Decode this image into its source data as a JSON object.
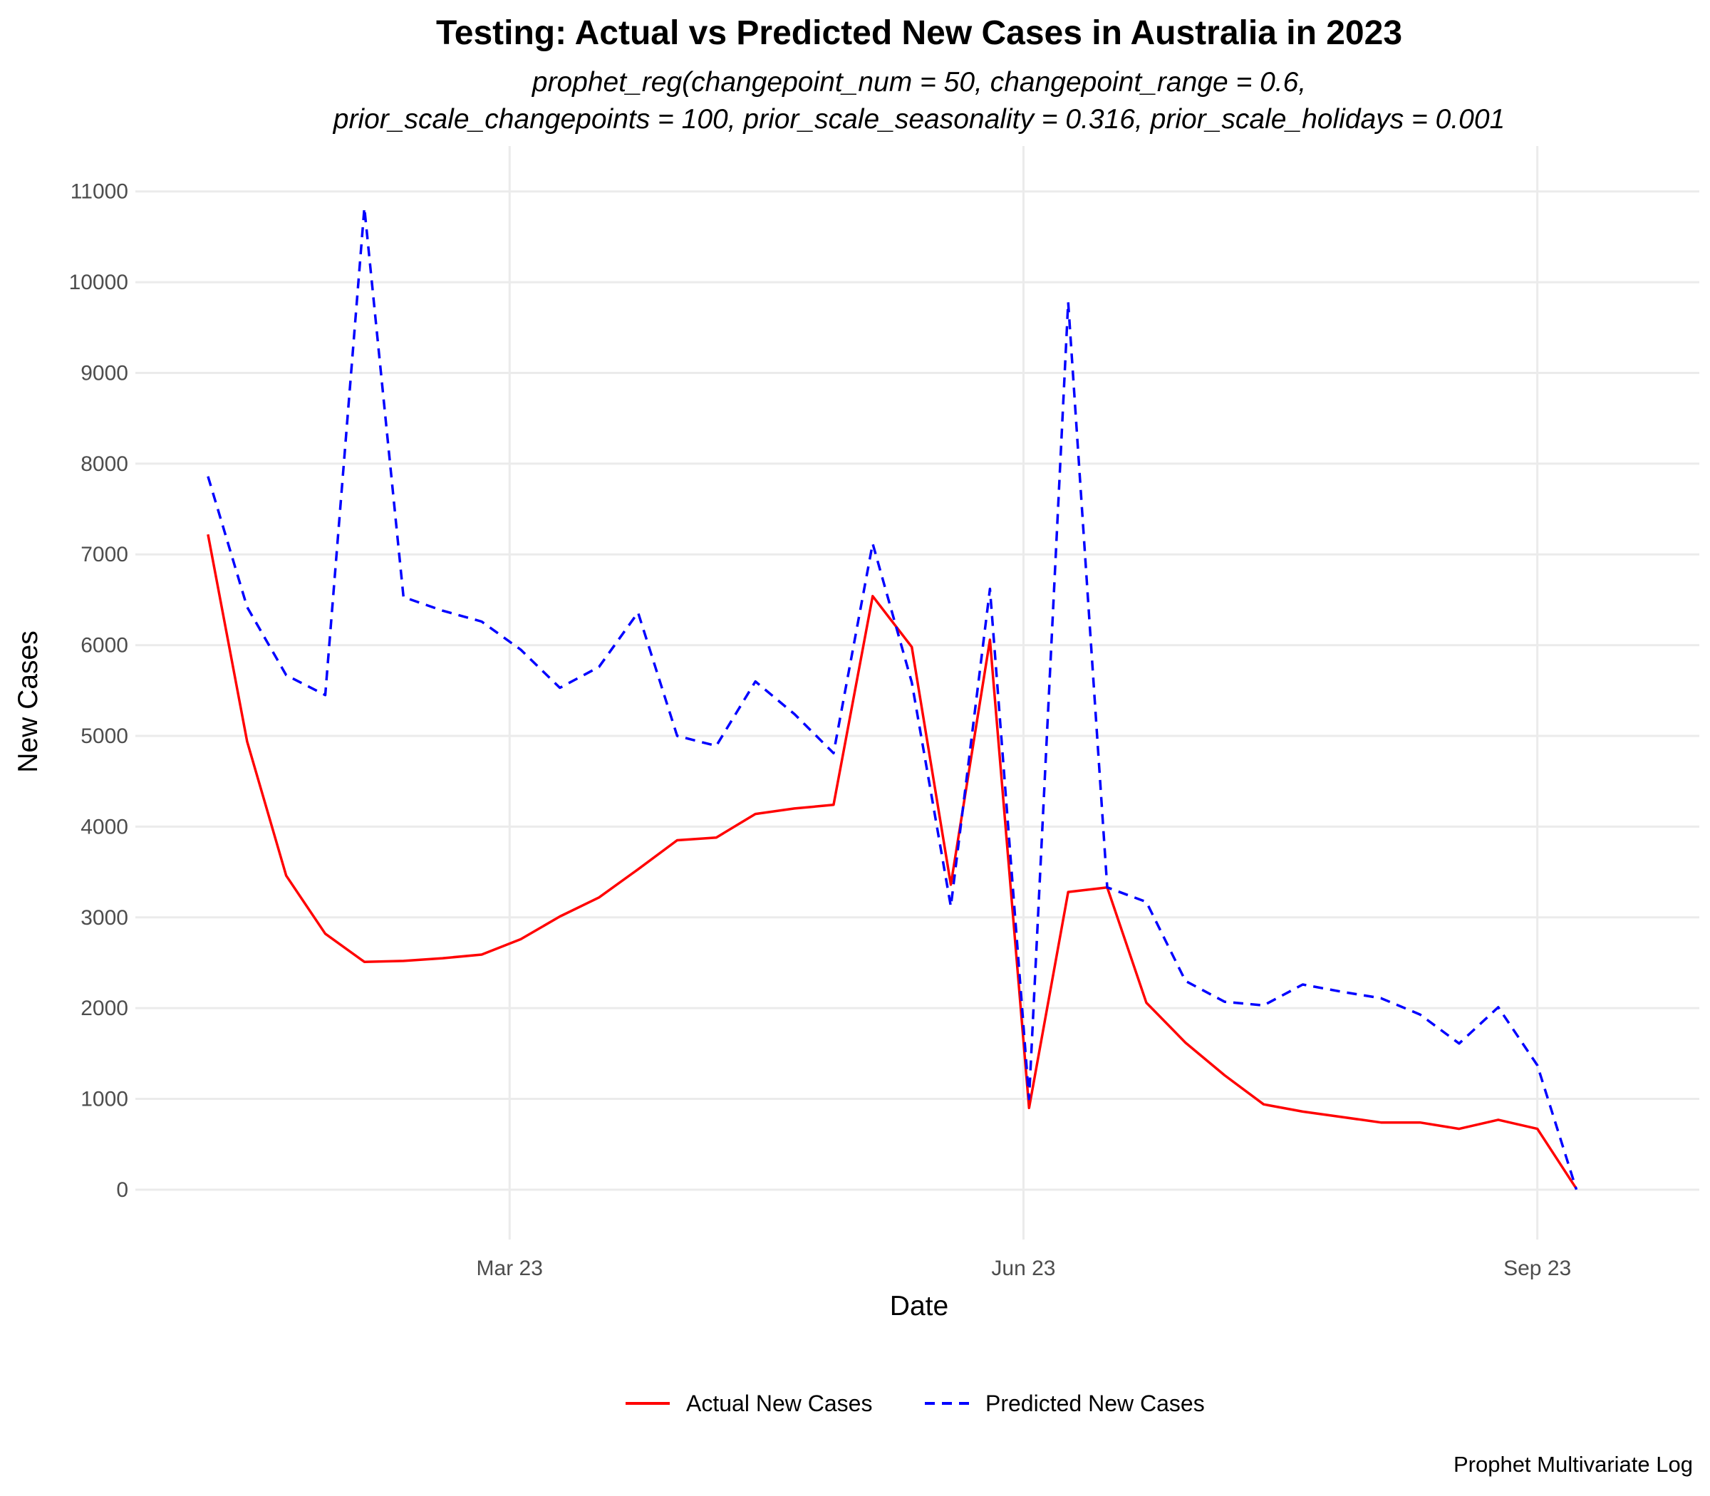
{
  "chart_data": {
    "type": "line",
    "title": "Testing: Actual vs Predicted New Cases in Australia in 2023",
    "subtitle_lines": [
      "prophet_reg(changepoint_num = 50, changepoint_range = 0.6,",
      "prior_scale_changepoints = 100, prior_scale_seasonality = 0.316, prior_scale_holidays = 0.001"
    ],
    "xlabel": "Date",
    "ylabel": "New Cases",
    "caption": "Prophet Multivariate Log",
    "xlim": [
      "2022-12-24",
      "2023-09-30"
    ],
    "ylim": [
      -550,
      11500
    ],
    "x_ticks": [
      {
        "date": "2023-03-01",
        "label": "Mar 23"
      },
      {
        "date": "2023-06-01",
        "label": "Jun 23"
      },
      {
        "date": "2023-09-01",
        "label": "Sep 23"
      }
    ],
    "y_ticks": [
      0,
      1000,
      2000,
      3000,
      4000,
      5000,
      6000,
      7000,
      8000,
      9000,
      10000,
      11000
    ],
    "grid": true,
    "legend_position": "bottom",
    "x": [
      "2023-01-06",
      "2023-01-13",
      "2023-01-20",
      "2023-01-27",
      "2023-02-03",
      "2023-02-10",
      "2023-02-17",
      "2023-02-24",
      "2023-03-03",
      "2023-03-10",
      "2023-03-17",
      "2023-03-24",
      "2023-03-31",
      "2023-04-07",
      "2023-04-14",
      "2023-04-21",
      "2023-04-28",
      "2023-05-05",
      "2023-05-12",
      "2023-05-19",
      "2023-05-26",
      "2023-06-02",
      "2023-06-09",
      "2023-06-16",
      "2023-06-23",
      "2023-06-30",
      "2023-07-07",
      "2023-07-14",
      "2023-07-21",
      "2023-07-28",
      "2023-08-04",
      "2023-08-11",
      "2023-08-18",
      "2023-08-25",
      "2023-09-01",
      "2023-09-08"
    ],
    "series": [
      {
        "name": "Actual New Cases",
        "color": "#ff0000",
        "dash": "solid",
        "values": [
          7220,
          4940,
          3460,
          2820,
          2510,
          2520,
          2550,
          2590,
          2760,
          3010,
          3220,
          3530,
          3850,
          3880,
          4140,
          4200,
          4240,
          6540,
          5980,
          3360,
          6060,
          900,
          3280,
          3330,
          2060,
          1620,
          1260,
          940,
          860,
          800,
          740,
          740,
          670,
          770,
          670,
          10
        ]
      },
      {
        "name": "Predicted New Cases",
        "color": "#0000ff",
        "dash": "dashed",
        "values": [
          7860,
          6420,
          5670,
          5450,
          10820,
          6530,
          6380,
          6260,
          5950,
          5530,
          5760,
          6360,
          5000,
          4890,
          5600,
          5240,
          4810,
          7120,
          5590,
          3120,
          6620,
          1000,
          9780,
          3330,
          3170,
          2300,
          2070,
          2030,
          2260,
          2180,
          2110,
          1930,
          1610,
          2010,
          1370,
          0
        ]
      }
    ]
  }
}
